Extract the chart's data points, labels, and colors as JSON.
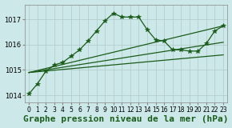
{
  "title": "Graphe pression niveau de la mer (hPa)",
  "bg_color": "#cce8e8",
  "grid_color": "#b0c8c8",
  "line_color": "#1a5c1a",
  "ylim": [
    1013.7,
    1017.6
  ],
  "xlim": [
    -0.5,
    23.5
  ],
  "yticks": [
    1014,
    1015,
    1016,
    1017
  ],
  "xticks": [
    0,
    1,
    2,
    3,
    4,
    5,
    6,
    7,
    8,
    9,
    10,
    11,
    12,
    13,
    14,
    15,
    16,
    17,
    18,
    19,
    20,
    21,
    22,
    23
  ],
  "series": [
    {
      "x": [
        0,
        23
      ],
      "y": [
        1014.9,
        1015.6
      ],
      "marker": null,
      "lw": 0.9
    },
    {
      "x": [
        0,
        23
      ],
      "y": [
        1014.9,
        1016.1
      ],
      "marker": null,
      "lw": 0.9
    },
    {
      "x": [
        0,
        23
      ],
      "y": [
        1014.9,
        1016.75
      ],
      "marker": null,
      "lw": 0.9
    },
    {
      "x": [
        0,
        1,
        2,
        3,
        4,
        5,
        6,
        7,
        8,
        9,
        10,
        11,
        12,
        13,
        14,
        15,
        16,
        17,
        18,
        19,
        20,
        21,
        22,
        23
      ],
      "y": [
        1014.05,
        1014.45,
        1014.95,
        1015.2,
        1015.3,
        1015.55,
        1015.8,
        1016.15,
        1016.55,
        1016.95,
        1017.25,
        1017.1,
        1017.1,
        1017.1,
        1016.6,
        1016.2,
        1016.15,
        1015.8,
        1015.8,
        1015.75,
        1015.75,
        1016.05,
        1016.55,
        1016.75
      ],
      "marker": "*",
      "markersize": 4,
      "lw": 0.9
    }
  ],
  "title_fontsize": 8,
  "tick_fontsize": 6
}
